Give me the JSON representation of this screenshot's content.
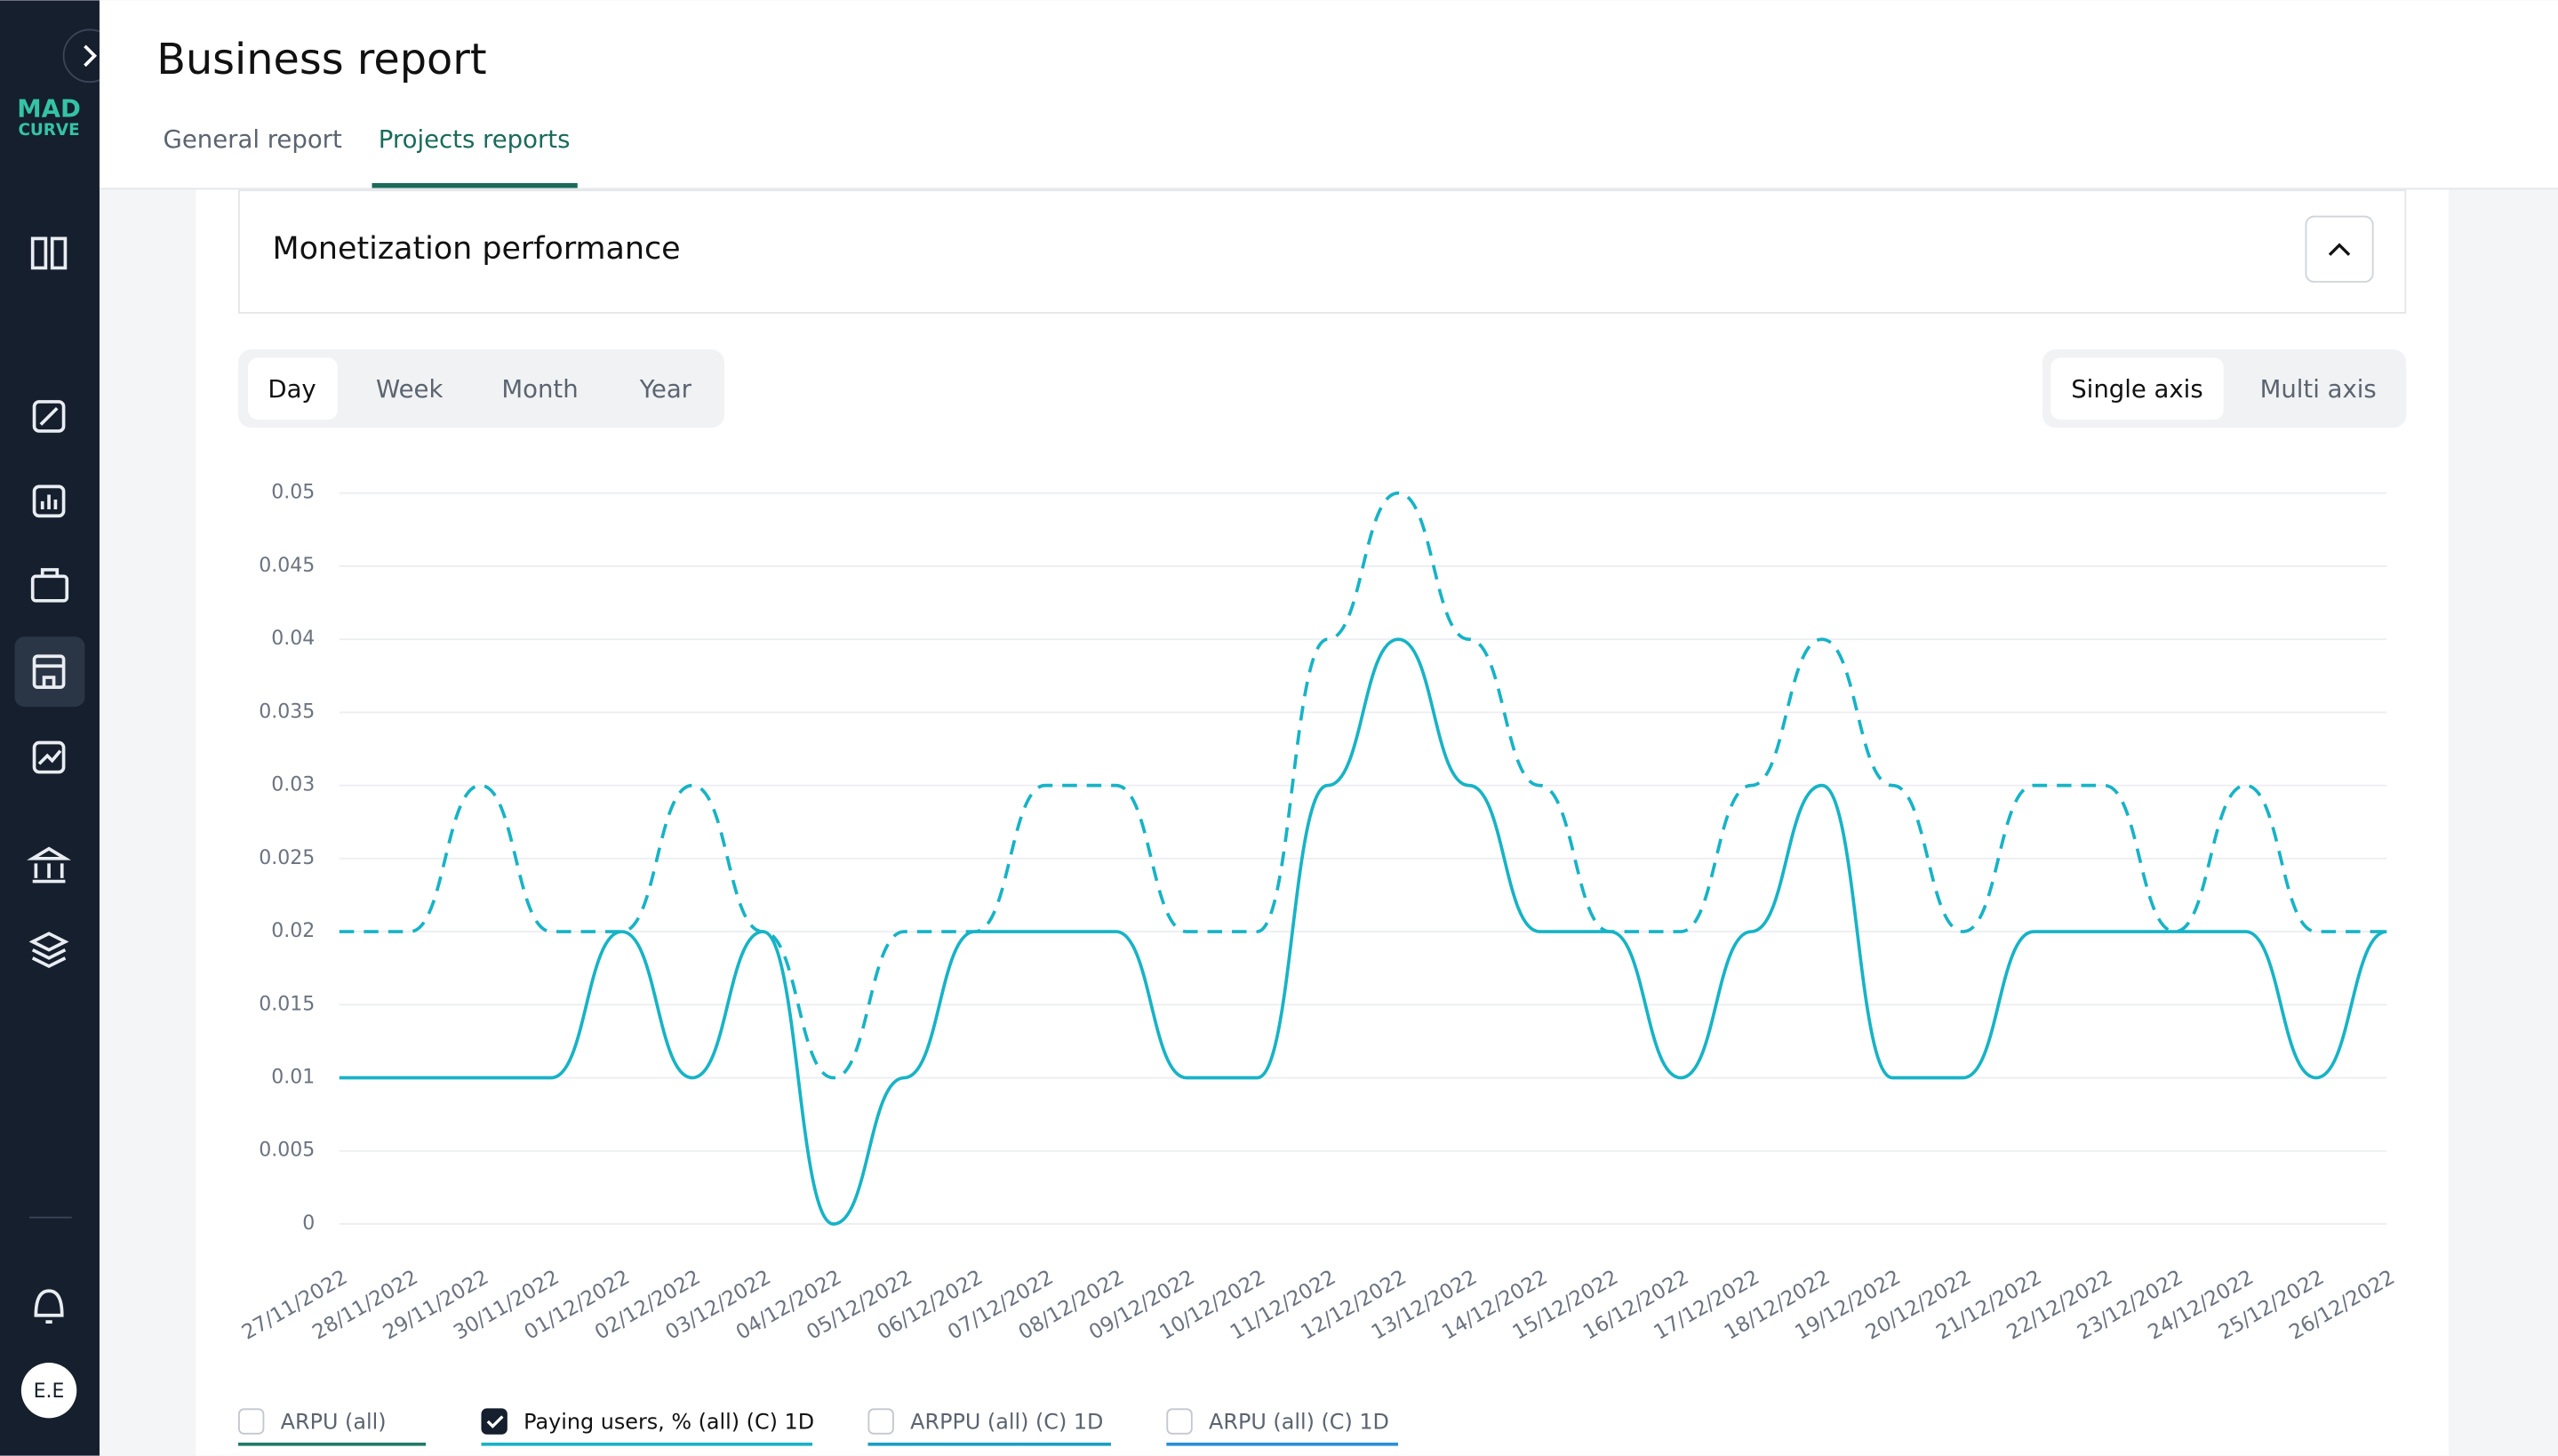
{
  "ui": {
    "logo": [
      "MAD",
      "CURVE"
    ],
    "avatar": "E.E",
    "header": {
      "title": "Business report",
      "tabs": [
        "General report",
        "Projects reports"
      ]
    },
    "section_title": "Monetization performance",
    "periods": [
      "Day",
      "Week",
      "Month",
      "Year"
    ],
    "axis_modes": [
      "Single axis",
      "Multi axis"
    ],
    "metrics": [
      {
        "label": "ARPU (all)",
        "checked": false,
        "color": "#1f7a68"
      },
      {
        "label": "ARPPU (all) (C) 1D",
        "checked": false,
        "color": "#1a9fc4"
      },
      {
        "label": "ARPU (all) (C) 1D",
        "checked": false,
        "color": "#2a8fd8"
      }
    ]
  },
  "chart_data": {
    "type": "line",
    "x": [
      "27/11/2022",
      "28/11/2022",
      "29/11/2022",
      "30/11/2022",
      "01/12/2022",
      "02/12/2022",
      "03/12/2022",
      "04/12/2022",
      "05/12/2022",
      "06/12/2022",
      "07/12/2022",
      "08/12/2022",
      "09/12/2022",
      "10/12/2022",
      "11/12/2022",
      "12/12/2022",
      "13/12/2022",
      "14/12/2022",
      "15/12/2022",
      "16/12/2022",
      "17/12/2022",
      "18/12/2022",
      "19/12/2022",
      "20/12/2022",
      "21/12/2022",
      "22/12/2022",
      "23/12/2022",
      "24/12/2022",
      "25/12/2022",
      "26/12/2022"
    ],
    "series": [
      {
        "name": "Paying users, % (all) (C) 1D",
        "checked": true,
        "color": "#17b3c6",
        "dashed": false,
        "values": [
          0.01,
          0.01,
          0.01,
          0.01,
          0.02,
          0.01,
          0.02,
          0,
          0.01,
          0.02,
          0.02,
          0.02,
          0.01,
          0.01,
          0.03,
          0.04,
          0.03,
          0.02,
          0.02,
          0.01,
          0.02,
          0.03,
          0.01,
          0.01,
          0.02,
          0.02,
          0.02,
          0.02,
          0.01,
          0.02
        ]
      },
      {
        "color": "#17b3c6",
        "dashed": true,
        "values": [
          0.02,
          0.02,
          0.03,
          0.02,
          0.02,
          0.03,
          0.02,
          0.01,
          0.02,
          0.02,
          0.03,
          0.03,
          0.02,
          0.02,
          0.04,
          0.05,
          0.04,
          0.03,
          0.02,
          0.02,
          0.03,
          0.04,
          0.03,
          0.02,
          0.03,
          0.03,
          0.02,
          0.03,
          0.02,
          0.02
        ]
      }
    ],
    "ylim": [
      0,
      0.05
    ],
    "yticks": [
      0,
      0.005,
      0.01,
      0.015,
      0.02,
      0.025,
      0.03,
      0.035,
      0.04,
      0.045,
      0.05
    ],
    "grid": true
  }
}
